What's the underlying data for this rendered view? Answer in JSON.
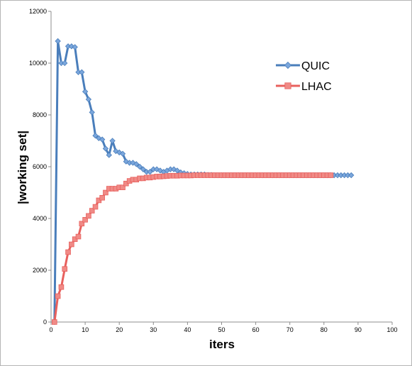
{
  "chart_data": {
    "type": "line",
    "title": "",
    "xlabel": "iters",
    "ylabel": "|working set|",
    "xlim": [
      0,
      100
    ],
    "ylim": [
      0,
      12000
    ],
    "x_ticks": [
      "0",
      "10",
      "20",
      "30",
      "40",
      "50",
      "60",
      "70",
      "80",
      "90",
      "100"
    ],
    "y_ticks": [
      "0",
      "2000",
      "4000",
      "6000",
      "8000",
      "10000",
      "12000"
    ],
    "grid": false,
    "legend_position": "top-right",
    "series": [
      {
        "name": "QUIC",
        "color": "#4a7ebb",
        "marker": "diamond",
        "x": [
          1,
          2,
          3,
          4,
          5,
          6,
          7,
          8,
          9,
          10,
          11,
          12,
          13,
          14,
          15,
          16,
          17,
          18,
          19,
          20,
          21,
          22,
          23,
          24,
          25,
          26,
          27,
          28,
          29,
          30,
          31,
          32,
          33,
          34,
          35,
          36,
          37,
          38,
          39,
          40,
          41,
          42,
          43,
          44,
          45,
          46,
          47,
          48,
          49,
          50,
          51,
          52,
          53,
          54,
          55,
          56,
          57,
          58,
          59,
          60,
          61,
          62,
          63,
          64,
          65,
          66,
          67,
          68,
          69,
          70,
          71,
          72,
          73,
          74,
          75,
          76,
          77,
          78,
          79,
          80,
          81,
          82,
          83,
          84,
          85,
          86,
          87,
          88
        ],
        "y": [
          0,
          10850,
          10000,
          10000,
          10650,
          10650,
          10620,
          9650,
          9650,
          8900,
          8600,
          8100,
          7200,
          7100,
          7050,
          6700,
          6450,
          7000,
          6600,
          6550,
          6500,
          6200,
          6150,
          6150,
          6100,
          6000,
          5900,
          5800,
          5800,
          5900,
          5900,
          5850,
          5800,
          5850,
          5900,
          5900,
          5850,
          5780,
          5750,
          5720,
          5700,
          5700,
          5700,
          5700,
          5700,
          5680,
          5680,
          5670,
          5670,
          5670,
          5670,
          5670,
          5670,
          5670,
          5670,
          5670,
          5670,
          5670,
          5670,
          5670,
          5670,
          5670,
          5670,
          5670,
          5670,
          5670,
          5670,
          5670,
          5670,
          5670,
          5670,
          5670,
          5670,
          5670,
          5670,
          5670,
          5670,
          5670,
          5670,
          5670,
          5670,
          5670,
          5670,
          5670,
          5670,
          5670,
          5670,
          5670
        ]
      },
      {
        "name": "LHAC",
        "color": "#e8605d",
        "marker": "square",
        "x": [
          1,
          2,
          3,
          4,
          5,
          6,
          7,
          8,
          9,
          10,
          11,
          12,
          13,
          14,
          15,
          16,
          17,
          18,
          19,
          20,
          21,
          22,
          23,
          24,
          25,
          26,
          27,
          28,
          29,
          30,
          31,
          32,
          33,
          34,
          35,
          36,
          37,
          38,
          39,
          40,
          41,
          42,
          43,
          44,
          45,
          46,
          47,
          48,
          49,
          50,
          51,
          52,
          53,
          54,
          55,
          56,
          57,
          58,
          59,
          60,
          61,
          62,
          63,
          64,
          65,
          66,
          67,
          68,
          69,
          70,
          71,
          72,
          73,
          74,
          75,
          76,
          77,
          78,
          79,
          80,
          81,
          82
        ],
        "y": [
          0,
          1000,
          1350,
          2050,
          2700,
          3000,
          3200,
          3300,
          3800,
          3950,
          4100,
          4300,
          4450,
          4700,
          4800,
          5000,
          5150,
          5150,
          5150,
          5200,
          5200,
          5350,
          5450,
          5500,
          5500,
          5550,
          5550,
          5580,
          5580,
          5600,
          5620,
          5620,
          5630,
          5640,
          5650,
          5650,
          5650,
          5660,
          5660,
          5660,
          5660,
          5670,
          5670,
          5670,
          5670,
          5670,
          5670,
          5670,
          5670,
          5670,
          5670,
          5670,
          5670,
          5670,
          5670,
          5670,
          5670,
          5670,
          5670,
          5670,
          5670,
          5670,
          5670,
          5670,
          5670,
          5670,
          5670,
          5670,
          5670,
          5670,
          5670,
          5670,
          5670,
          5670,
          5670,
          5670,
          5670,
          5670,
          5670,
          5670,
          5670,
          5670
        ]
      }
    ]
  }
}
